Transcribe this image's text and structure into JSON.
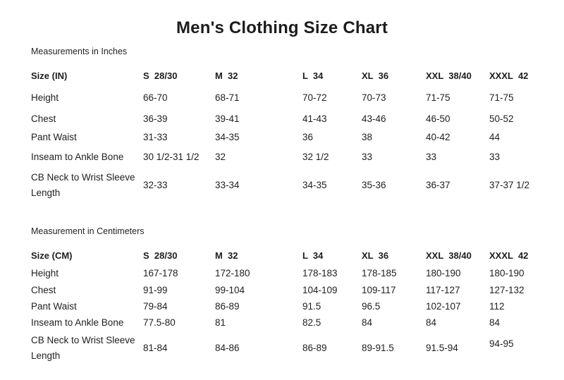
{
  "page_title": "Men's Clothing Size Chart",
  "tables": [
    {
      "section_label": "Measurements in Inches",
      "header": [
        "Size (IN)",
        "S  28/30",
        "M  32",
        "L  34",
        "XL  36",
        "XXL  38/40",
        "XXXL  42"
      ],
      "rows": [
        {
          "label": "Height",
          "values": [
            "66-70",
            "68-71",
            "70-72",
            "70-73",
            "71-75",
            "71-75"
          ]
        },
        {
          "label": "Chest",
          "values": [
            "36-39",
            "39-41",
            "41-43",
            "43-46",
            "46-50",
            "50-52"
          ]
        },
        {
          "label": "Pant Waist",
          "values": [
            "31-33",
            "34-35",
            "36",
            "38",
            "40-42",
            "44"
          ]
        },
        {
          "label": "Inseam to Ankle Bone",
          "values": [
            "30 1/2-31 1/2",
            "32",
            "32 1/2",
            "33",
            "33",
            "33"
          ]
        },
        {
          "label": "CB Neck to Wrist Sleeve Length",
          "values": [
            "32-33",
            "33-34",
            "34-35",
            "35-36",
            "36-37",
            "37-37 1/2"
          ]
        }
      ]
    },
    {
      "section_label": "Measurement in Centimeters",
      "header": [
        "Size (CM)",
        "S  28/30",
        "M  32",
        "L  34",
        "XL  36",
        "XXL  38/40",
        "XXXL  42"
      ],
      "rows": [
        {
          "label": "Height",
          "values": [
            "167-178",
            "172-180",
            "178-183",
            "178-185",
            "180-190",
            "180-190"
          ]
        },
        {
          "label": "Chest",
          "values": [
            "91-99",
            "99-104",
            "104-109",
            "109-117",
            "117-127",
            "127-132"
          ]
        },
        {
          "label": "Pant Waist",
          "values": [
            "79-84",
            "86-89",
            "91.5",
            "96.5",
            "102-107",
            "112"
          ]
        },
        {
          "label": "Inseam to Ankle Bone",
          "values": [
            "77.5-80",
            "81",
            "82.5",
            "84",
            "84",
            "84"
          ]
        },
        {
          "label": "CB Neck to Wrist Sleeve Length",
          "values": [
            "81-84",
            "84-86",
            "86-89",
            "89-91.5",
            "91.5-94",
            "94-95"
          ]
        }
      ]
    }
  ]
}
